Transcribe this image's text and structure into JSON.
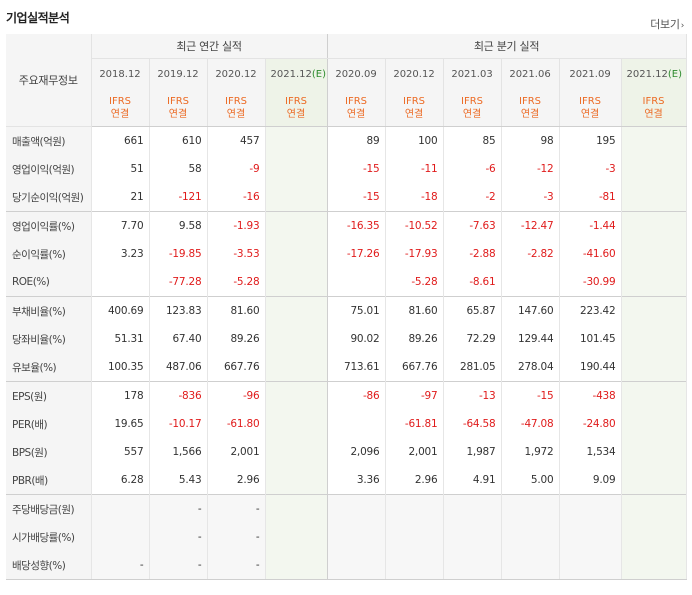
{
  "title": "기업실적분석",
  "more_label": "더보기",
  "headers": {
    "row_label": "주요재무정보",
    "annual_group": "최근 연간 실적",
    "quarter_group": "최근 분기 실적",
    "annual_periods": [
      "2018.12",
      "2019.12",
      "2020.12",
      "2021.12"
    ],
    "quarter_periods": [
      "2020.09",
      "2020.12",
      "2021.03",
      "2021.06",
      "2021.09",
      "2021.12"
    ],
    "estimate_mark": "(E)",
    "ifrs_top": "IFRS",
    "ifrs_bottom": "연결"
  },
  "rows": [
    {
      "label": "매출액(억원)",
      "values": [
        "661",
        "610",
        "457",
        "",
        "89",
        "100",
        "85",
        "98",
        "195",
        ""
      ]
    },
    {
      "label": "영업이익(억원)",
      "values": [
        "51",
        "58",
        "-9",
        "",
        "-15",
        "-11",
        "-6",
        "-12",
        "-3",
        ""
      ]
    },
    {
      "label": "당기순이익(억원)",
      "values": [
        "21",
        "-121",
        "-16",
        "",
        "-15",
        "-18",
        "-2",
        "-3",
        "-81",
        ""
      ]
    },
    {
      "label": "영업이익률(%)",
      "values": [
        "7.70",
        "9.58",
        "-1.93",
        "",
        "-16.35",
        "-10.52",
        "-7.63",
        "-12.47",
        "-1.44",
        ""
      ]
    },
    {
      "label": "순이익률(%)",
      "values": [
        "3.23",
        "-19.85",
        "-3.53",
        "",
        "-17.26",
        "-17.93",
        "-2.88",
        "-2.82",
        "-41.60",
        ""
      ]
    },
    {
      "label": "ROE(%)",
      "values": [
        "",
        "-77.28",
        "-5.28",
        "",
        "",
        "-5.28",
        "-8.61",
        "",
        "-30.99",
        ""
      ]
    },
    {
      "label": "부채비율(%)",
      "values": [
        "400.69",
        "123.83",
        "81.60",
        "",
        "75.01",
        "81.60",
        "65.87",
        "147.60",
        "223.42",
        ""
      ]
    },
    {
      "label": "당좌비율(%)",
      "values": [
        "51.31",
        "67.40",
        "89.26",
        "",
        "90.02",
        "89.26",
        "72.29",
        "129.44",
        "101.45",
        ""
      ]
    },
    {
      "label": "유보율(%)",
      "values": [
        "100.35",
        "487.06",
        "667.76",
        "",
        "713.61",
        "667.76",
        "281.05",
        "278.04",
        "190.44",
        ""
      ]
    },
    {
      "label": "EPS(원)",
      "values": [
        "178",
        "-836",
        "-96",
        "",
        "-86",
        "-97",
        "-13",
        "-15",
        "-438",
        ""
      ]
    },
    {
      "label": "PER(배)",
      "values": [
        "19.65",
        "-10.17",
        "-61.80",
        "",
        "",
        "-61.81",
        "-64.58",
        "-47.08",
        "-24.80",
        ""
      ]
    },
    {
      "label": "BPS(원)",
      "values": [
        "557",
        "1,566",
        "2,001",
        "",
        "2,096",
        "2,001",
        "1,987",
        "1,972",
        "1,534",
        ""
      ]
    },
    {
      "label": "PBR(배)",
      "values": [
        "6.28",
        "5.43",
        "2.96",
        "",
        "3.36",
        "2.96",
        "4.91",
        "5.00",
        "9.09",
        ""
      ]
    },
    {
      "label": "주당배당금(원)",
      "values": [
        "",
        "-",
        "-",
        "",
        "",
        "",
        "",
        "",
        "",
        ""
      ]
    },
    {
      "label": "시가배당률(%)",
      "values": [
        "",
        "-",
        "-",
        "",
        "",
        "",
        "",
        "",
        "",
        ""
      ]
    },
    {
      "label": "배당성향(%)",
      "values": [
        "-",
        "-",
        "-",
        "",
        "",
        "",
        "",
        "",
        "",
        ""
      ]
    }
  ],
  "colors": {
    "negative": "#e01b1b",
    "ifrs": "#ec6b25",
    "estimate": "#2e8b2e",
    "estimate_bg": "#f3f7ef"
  }
}
